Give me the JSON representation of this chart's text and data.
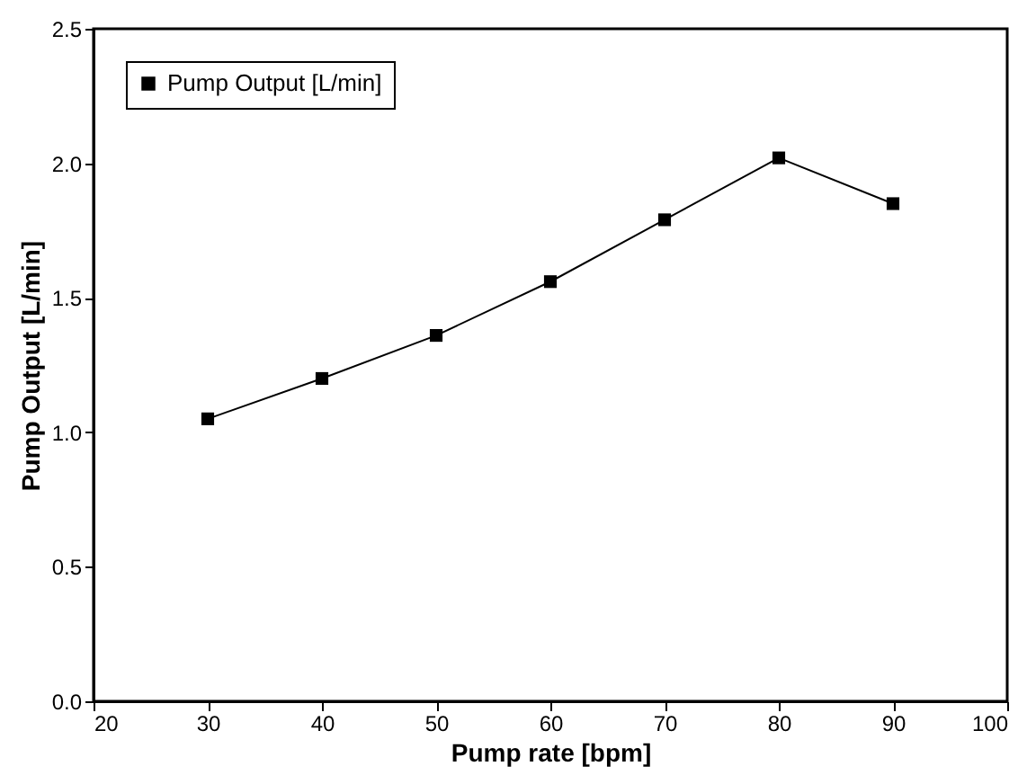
{
  "chart_data": {
    "type": "line",
    "xlabel": "Pump rate [bpm]",
    "ylabel": "Pump Output [L/min]",
    "x": [
      30,
      40,
      50,
      60,
      70,
      80,
      90
    ],
    "series": [
      {
        "name": "Pump Output [L/min]",
        "color": "#000000",
        "values": [
          1.05,
          1.2,
          1.36,
          1.56,
          1.79,
          2.02,
          1.85
        ]
      }
    ],
    "xlim": [
      20,
      100
    ],
    "xticks": [
      20,
      30,
      40,
      50,
      60,
      70,
      80,
      90,
      100
    ],
    "ylim": [
      0,
      2.5
    ],
    "yticks": [
      {
        "value": 0,
        "label": "0.0"
      },
      0.5,
      {
        "value": 1,
        "label": "1.0"
      },
      1.5,
      {
        "value": 2,
        "label": "2.0"
      },
      2.5
    ],
    "grid": false,
    "legend": "top left",
    "marker": "square",
    "line_style": "solid"
  }
}
